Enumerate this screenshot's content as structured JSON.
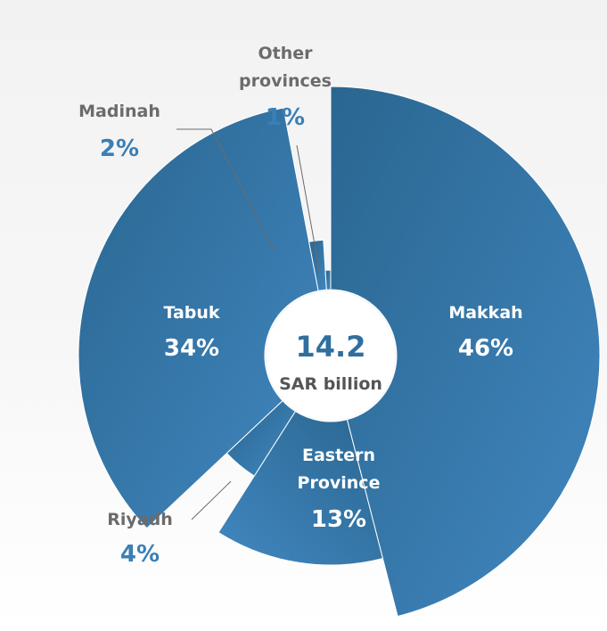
{
  "chart_data": {
    "type": "pie",
    "center": {
      "value": "14.2",
      "unit": "SAR billion"
    },
    "slices": [
      {
        "name": "Makkah",
        "value": 46,
        "label": "46%"
      },
      {
        "name": "Eastern Province",
        "name_lines": [
          "Eastern",
          "Province"
        ],
        "value": 13,
        "label": "13%"
      },
      {
        "name": "Riyadh",
        "value": 4,
        "label": "4%"
      },
      {
        "name": "Tabuk",
        "value": 34,
        "label": "34%"
      },
      {
        "name": "Madinah",
        "value": 2,
        "label": "2%"
      },
      {
        "name": "Other provinces",
        "name_lines": [
          "Other",
          "provinces"
        ],
        "value": 1,
        "label": "1%"
      }
    ],
    "colors": {
      "light": "#4187c0",
      "dark": "#2a6690",
      "text_grey": "#6b6b6b",
      "accent": "#3a7fb5"
    }
  }
}
